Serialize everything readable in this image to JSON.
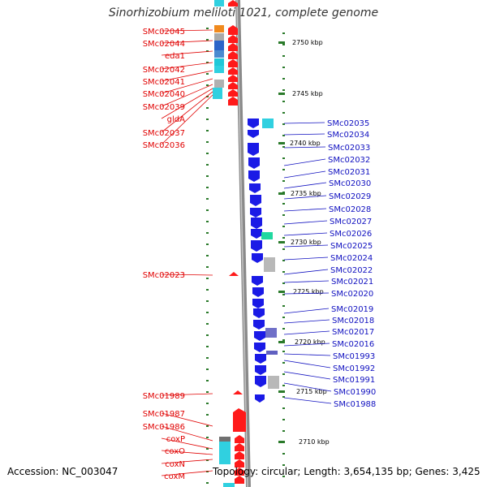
{
  "title": "Sinorhizobium meliloti 1021, complete genome",
  "accession": "Accession: NC_003047",
  "topology": "Topology: circular; Length: 3,654,135 bp; Genes: 3,425",
  "colors": {
    "left_label": "#e00000",
    "right_label": "#1010c0",
    "forward_gene": "#ff1a1a",
    "reverse_gene": "#1a1ae6",
    "ruler_tick": "#2a7a2a",
    "backbone": "#8a8a8a"
  },
  "ruler_labels": [
    "2750 kbp",
    "2745 kbp",
    "2740 kbp",
    "2735 kbp",
    "2730 kbp",
    "2725 kbp",
    "2720 kbp",
    "2715 kbp",
    "2710 kbp"
  ],
  "left_genes": [
    "SMc02045",
    "SMc02044",
    "eda1",
    "SMc02042",
    "SMc02041",
    "SMc02040",
    "SMc02039",
    "gldA",
    "SMc02037",
    "SMc02036",
    "SMc02023",
    "SMc01989",
    "SMc01987",
    "SMc01986",
    "coxP",
    "coxO",
    "coxN",
    "coxM"
  ],
  "right_genes": [
    "SMc02035",
    "SMc02034",
    "SMc02033",
    "SMc02032",
    "SMc02031",
    "SMc02030",
    "SMc02029",
    "SMc02028",
    "SMc02027",
    "SMc02026",
    "SMc02025",
    "SMc02024",
    "SMc02022",
    "SMc02021",
    "SMc02020",
    "SMc02019",
    "SMc02018",
    "SMc02017",
    "SMc02016",
    "SMc01993",
    "SMc01992",
    "SMc01991",
    "SMc01990",
    "SMc01988"
  ]
}
